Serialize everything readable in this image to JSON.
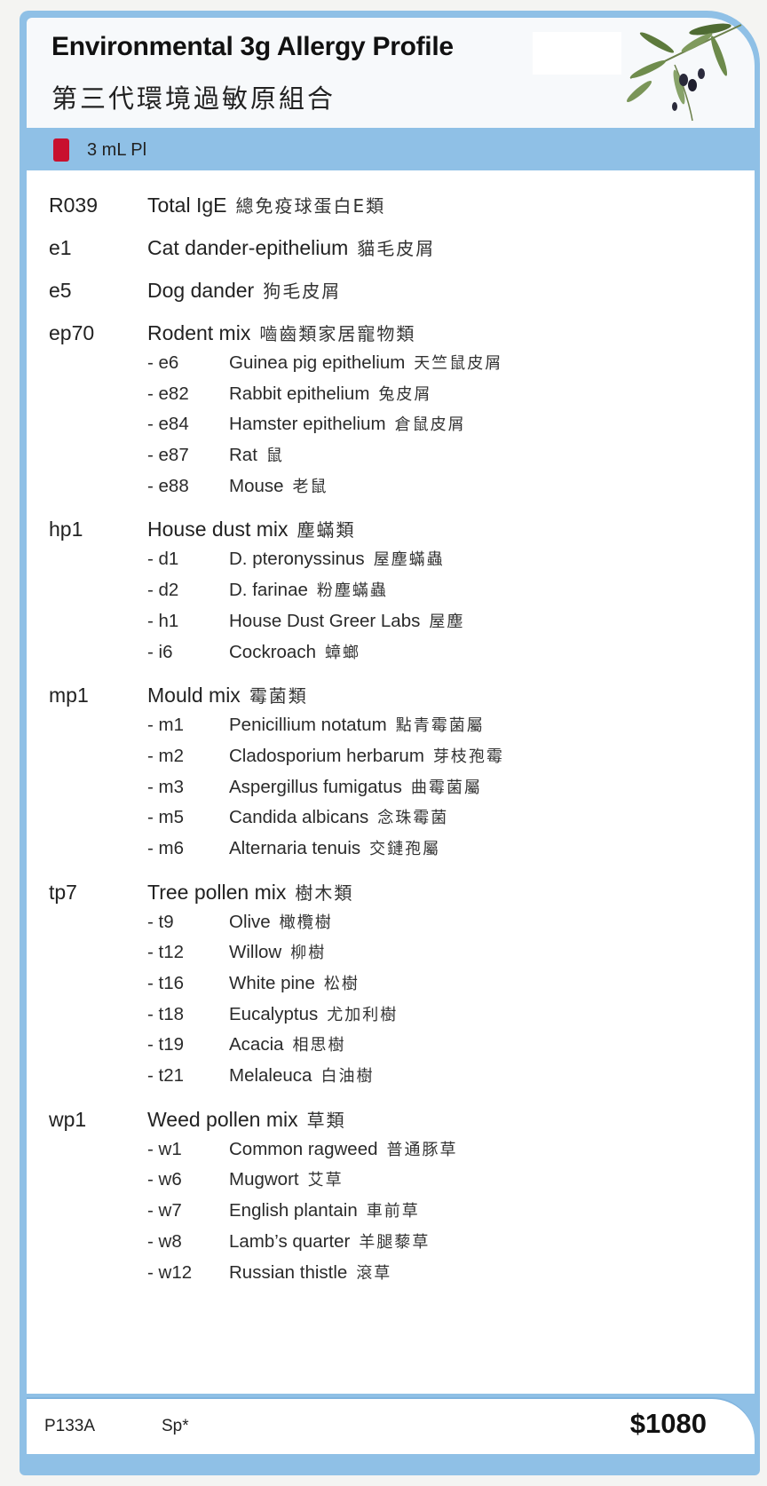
{
  "header": {
    "title": "Environmental 3g Allergy Profile",
    "subtitle_zh": "第三代環境過敏原組合"
  },
  "sample": {
    "tube_color": "#c8102e",
    "volume": "3 mL Pl"
  },
  "colors": {
    "frame_blue": "#8fc0e6"
  },
  "groups": [
    {
      "code": "R039",
      "name": "Total IgE",
      "zh": "總免疫球蛋白E類",
      "items": []
    },
    {
      "code": "e1",
      "name": "Cat dander-epithelium",
      "zh": "貓毛皮屑",
      "items": []
    },
    {
      "code": "e5",
      "name": "Dog dander",
      "zh": "狗毛皮屑",
      "items": []
    },
    {
      "code": "ep70",
      "name": "Rodent mix",
      "zh": "嚙齒類家居寵物類",
      "items": [
        {
          "code": "- e6",
          "name": "Guinea pig epithelium",
          "zh": "天竺鼠皮屑"
        },
        {
          "code": "- e82",
          "name": "Rabbit epithelium",
          "zh": "兔皮屑"
        },
        {
          "code": "- e84",
          "name": "Hamster epithelium",
          "zh": "倉鼠皮屑"
        },
        {
          "code": "- e87",
          "name": "Rat",
          "zh": "鼠"
        },
        {
          "code": "- e88",
          "name": "Mouse",
          "zh": "老鼠"
        }
      ]
    },
    {
      "code": "hp1",
      "name": "House dust mix",
      "zh": "塵蟎類",
      "items": [
        {
          "code": "- d1",
          "name": "D. pteronyssinus",
          "zh": "屋塵蟎蟲"
        },
        {
          "code": "- d2",
          "name": "D. farinae",
          "zh": "粉塵蟎蟲"
        },
        {
          "code": "- h1",
          "name": "House Dust Greer Labs",
          "zh": "屋塵"
        },
        {
          "code": "- i6",
          "name": "Cockroach",
          "zh": "蟑螂"
        }
      ]
    },
    {
      "code": "mp1",
      "name": "Mould mix",
      "zh": "霉菌類",
      "items": [
        {
          "code": "- m1",
          "name": "Penicillium notatum",
          "zh": "點青霉菌屬"
        },
        {
          "code": "- m2",
          "name": "Cladosporium herbarum",
          "zh": "芽枝孢霉"
        },
        {
          "code": "- m3",
          "name": "Aspergillus fumigatus",
          "zh": "曲霉菌屬"
        },
        {
          "code": "- m5",
          "name": "Candida albicans",
          "zh": "念珠霉菌"
        },
        {
          "code": "- m6",
          "name": "Alternaria tenuis",
          "zh": "交鏈孢屬"
        }
      ]
    },
    {
      "code": "tp7",
      "name": "Tree pollen mix",
      "zh": "樹木類",
      "items": [
        {
          "code": "- t9",
          "name": "Olive",
          "zh": "橄欖樹"
        },
        {
          "code": "- t12",
          "name": "Willow",
          "zh": "柳樹"
        },
        {
          "code": "- t16",
          "name": "White pine",
          "zh": "松樹"
        },
        {
          "code": "- t18",
          "name": "Eucalyptus",
          "zh": "尤加利樹"
        },
        {
          "code": "- t19",
          "name": "Acacia",
          "zh": "相思樹"
        },
        {
          "code": "- t21",
          "name": "Melaleuca",
          "zh": "白油樹"
        }
      ]
    },
    {
      "code": "wp1",
      "name": "Weed pollen mix",
      "zh": "草類",
      "items": [
        {
          "code": "- w1",
          "name": "Common ragweed",
          "zh": "普通豚草"
        },
        {
          "code": "- w6",
          "name": "Mugwort",
          "zh": "艾草"
        },
        {
          "code": "- w7",
          "name": "English plantain",
          "zh": "車前草"
        },
        {
          "code": "- w8",
          "name": "Lamb’s quarter",
          "zh": "羊腿藜草"
        },
        {
          "code": "- w12",
          "name": "Russian thistle",
          "zh": "滾草"
        }
      ]
    }
  ],
  "footer": {
    "code": "P133A",
    "specimen": "Sp*",
    "price": "$1080"
  }
}
